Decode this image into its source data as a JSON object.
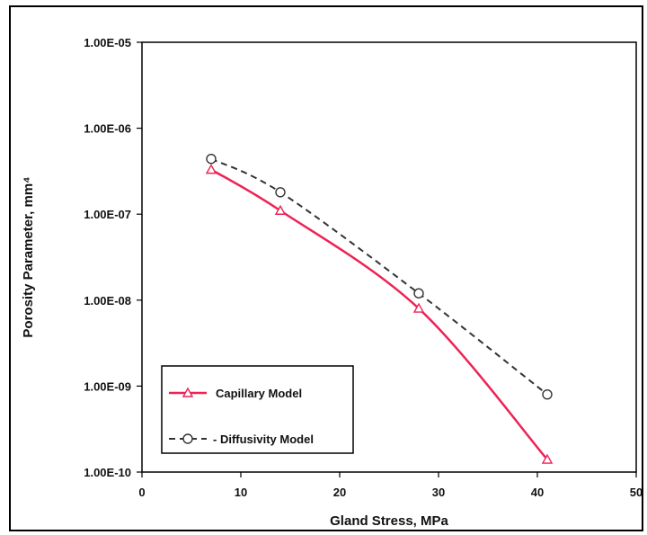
{
  "chart_data": {
    "type": "line",
    "title": "",
    "xlabel": "Gland Stress, MPa",
    "ylabel": "Porosity Parameter, mm⁴",
    "xlim": [
      0,
      50
    ],
    "ylim": [
      1e-10,
      1e-05
    ],
    "yscale": "log",
    "x_ticks": [
      "0",
      "10",
      "20",
      "30",
      "40",
      "50"
    ],
    "y_ticks": [
      "1.00E-05",
      "1.00E-06",
      "1.00E-07",
      "1.00E-08",
      "1.00E-09",
      "1.00E-10"
    ],
    "grid": false,
    "legend": "bottom-left",
    "series": [
      {
        "name": "Capillary Model",
        "marker": "triangle",
        "line_style": "solid",
        "color": "#ee2255",
        "x": [
          7,
          14,
          28,
          41
        ],
        "y": [
          3.3e-07,
          1.1e-07,
          8e-09,
          1.4e-10
        ]
      },
      {
        "name": "- Diffusivity Model",
        "marker": "circle",
        "line_style": "dashed",
        "color": "#333333",
        "x": [
          7,
          14,
          28,
          41
        ],
        "y": [
          4.4e-07,
          1.8e-07,
          1.2e-08,
          8e-10
        ]
      }
    ]
  }
}
